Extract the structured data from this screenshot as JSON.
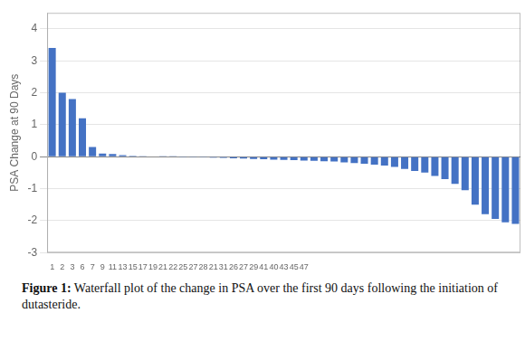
{
  "chart_data": {
    "type": "bar",
    "ylabel": "PSA Change at 90 Days",
    "annotations": [
      "Figure 1:",
      "Waterfall plot of the change in PSA over the first 90 days following the initiation of dutasteride."
    ],
    "categories": [
      "1",
      "2",
      "3",
      "6",
      "7",
      "9",
      "11",
      "13",
      "15",
      "17",
      "19",
      "21",
      "22",
      "25",
      "27",
      "28",
      "21",
      "31",
      "26",
      "27",
      "29",
      "41",
      "40",
      "43",
      "45",
      "47",
      null,
      null,
      null,
      null,
      null,
      null,
      null,
      null,
      null,
      null,
      null,
      null,
      null,
      null,
      null,
      null,
      null,
      null,
      null,
      null,
      null
    ],
    "values": [
      3.4,
      2.0,
      1.8,
      1.2,
      0.3,
      0.1,
      0.08,
      0.05,
      0.03,
      0.02,
      0.01,
      0.005,
      0.003,
      -0.005,
      -0.01,
      -0.02,
      -0.03,
      -0.04,
      -0.05,
      -0.06,
      -0.07,
      -0.08,
      -0.09,
      -0.1,
      -0.11,
      -0.12,
      -0.13,
      -0.14,
      -0.15,
      -0.18,
      -0.2,
      -0.22,
      -0.25,
      -0.28,
      -0.32,
      -0.38,
      -0.45,
      -0.5,
      -0.6,
      -0.7,
      -0.85,
      -1.05,
      -1.5,
      -1.8,
      -1.95,
      -2.05,
      -2.1
    ],
    "color": "#4472c4",
    "ylim": [
      -3,
      4.5
    ],
    "yticks": [
      -3,
      -2,
      -1,
      0,
      1,
      2,
      3,
      4
    ],
    "grid": true
  }
}
